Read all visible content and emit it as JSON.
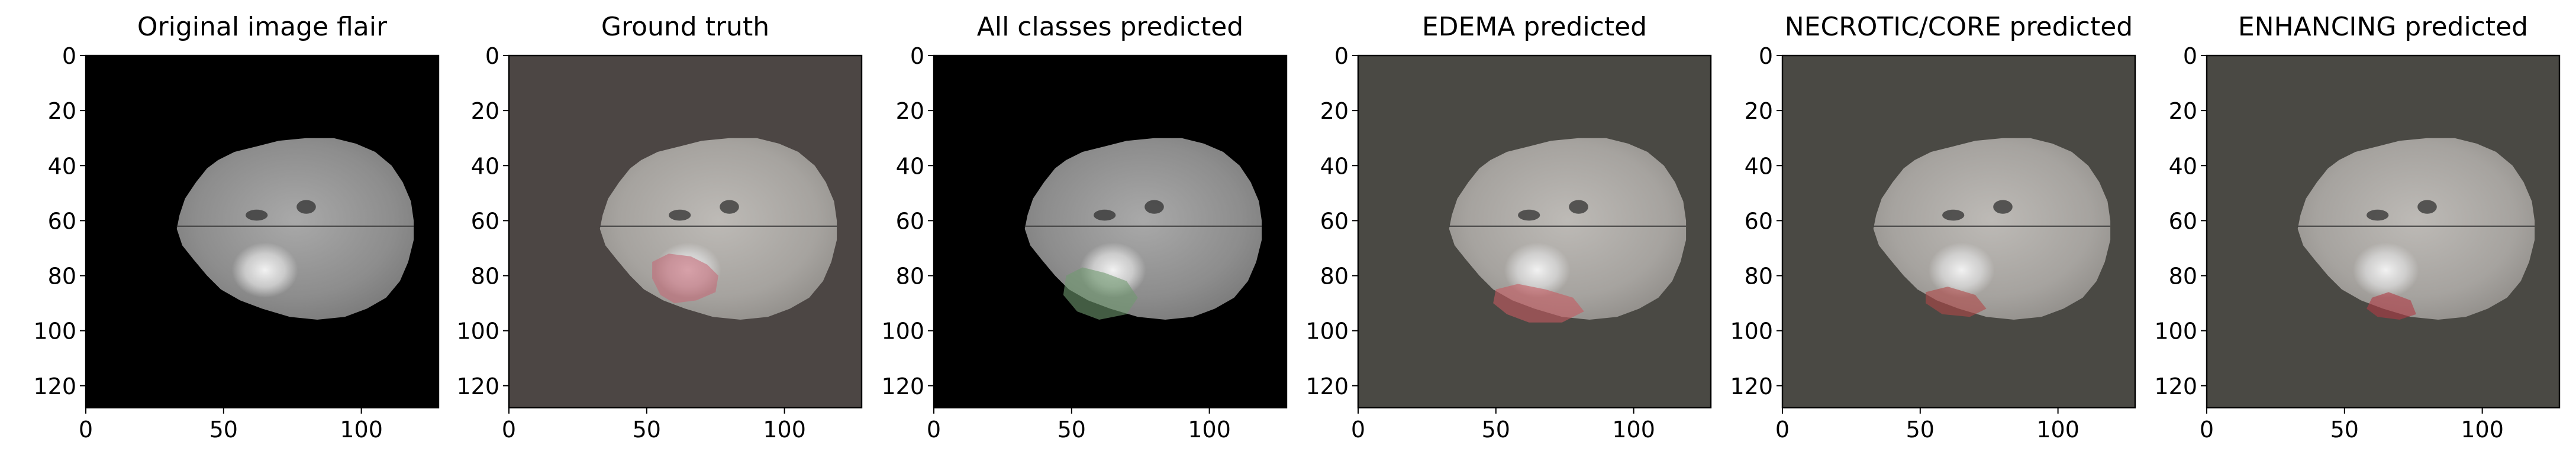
{
  "figure": {
    "panels": [
      {
        "title": "Original image flair",
        "bg": "#000000",
        "overlay": "none",
        "overlay_color": ""
      },
      {
        "title": "Ground truth",
        "bg": "#4c4644",
        "overlay": "ground-truth",
        "overlay_color": "#c56a78"
      },
      {
        "title": "All classes predicted",
        "bg": "#000000",
        "overlay": "all-classes",
        "overlay_color": "#6f9a6f"
      },
      {
        "title": "EDEMA predicted",
        "bg": "#4a4944",
        "overlay": "edema",
        "overlay_color": "#c65a60"
      },
      {
        "title": "NECROTIC/CORE predicted",
        "bg": "#4a4944",
        "overlay": "necrotic",
        "overlay_color": "#b04848"
      },
      {
        "title": "ENHANCING predicted",
        "bg": "#4a4944",
        "overlay": "enhancing",
        "overlay_color": "#b03a44"
      }
    ],
    "x_ticks": [
      0,
      50,
      100
    ],
    "y_ticks": [
      0,
      20,
      40,
      60,
      80,
      100,
      120
    ],
    "extent": [
      0,
      128
    ]
  }
}
